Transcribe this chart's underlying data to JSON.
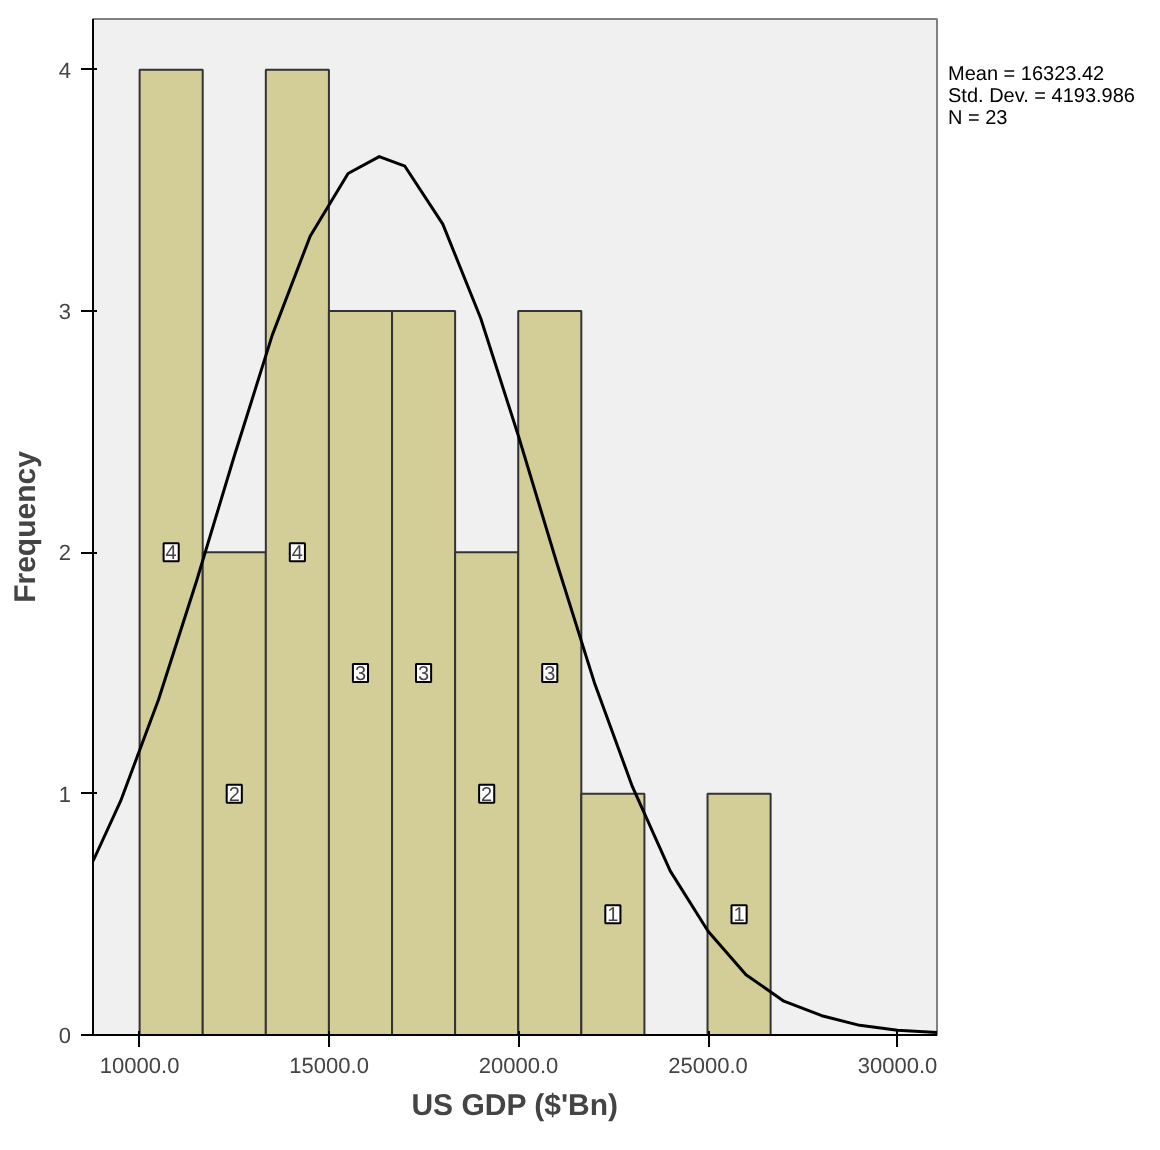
{
  "chart_data": {
    "type": "histogram",
    "xlabel": "US GDP ($'Bn)",
    "ylabel": "Frequency",
    "bins": [
      10000,
      11665,
      13330,
      14995,
      16660,
      18325,
      19990,
      21655,
      23320,
      24985,
      26650
    ],
    "values": [
      4,
      2,
      4,
      3,
      3,
      2,
      3,
      1,
      0,
      1
    ],
    "value_labels": [
      "4",
      "2",
      "4",
      "3",
      "3",
      "2",
      "3",
      "1",
      null,
      "1"
    ],
    "color": "#d3ce97",
    "series": [
      {
        "type": "line",
        "color": "#000000",
        "x": [
          8770,
          9500,
          10500,
          11500,
          12500,
          13500,
          14500,
          15500,
          16323,
          17000,
          18000,
          19000,
          20000,
          21000,
          22000,
          23000,
          24000,
          25000,
          26000,
          27000,
          28000,
          29000,
          30000,
          31040
        ],
        "values": [
          0.72,
          0.97,
          1.39,
          1.88,
          2.4,
          2.9,
          3.31,
          3.57,
          3.64,
          3.6,
          3.36,
          2.97,
          2.48,
          1.96,
          1.46,
          1.03,
          0.68,
          0.43,
          0.25,
          0.14,
          0.08,
          0.04,
          0.02,
          0.01
        ]
      }
    ],
    "xlim": [
      8770,
      31040
    ],
    "xticks": [
      {
        "value": 10000,
        "label": "10000.0"
      },
      {
        "value": 15000,
        "label": "15000.0"
      },
      {
        "value": 20000,
        "label": "20000.0"
      },
      {
        "value": 25000,
        "label": "25000.0"
      },
      {
        "value": 30000,
        "label": "30000.0"
      }
    ],
    "ylim": [
      0,
      4.21
    ],
    "yticks": [
      0,
      1,
      2,
      3,
      4
    ],
    "grid": false,
    "annotations": [
      "Mean = 16323.42",
      "Std. Dev. = 4193.986",
      "N = 23"
    ]
  }
}
